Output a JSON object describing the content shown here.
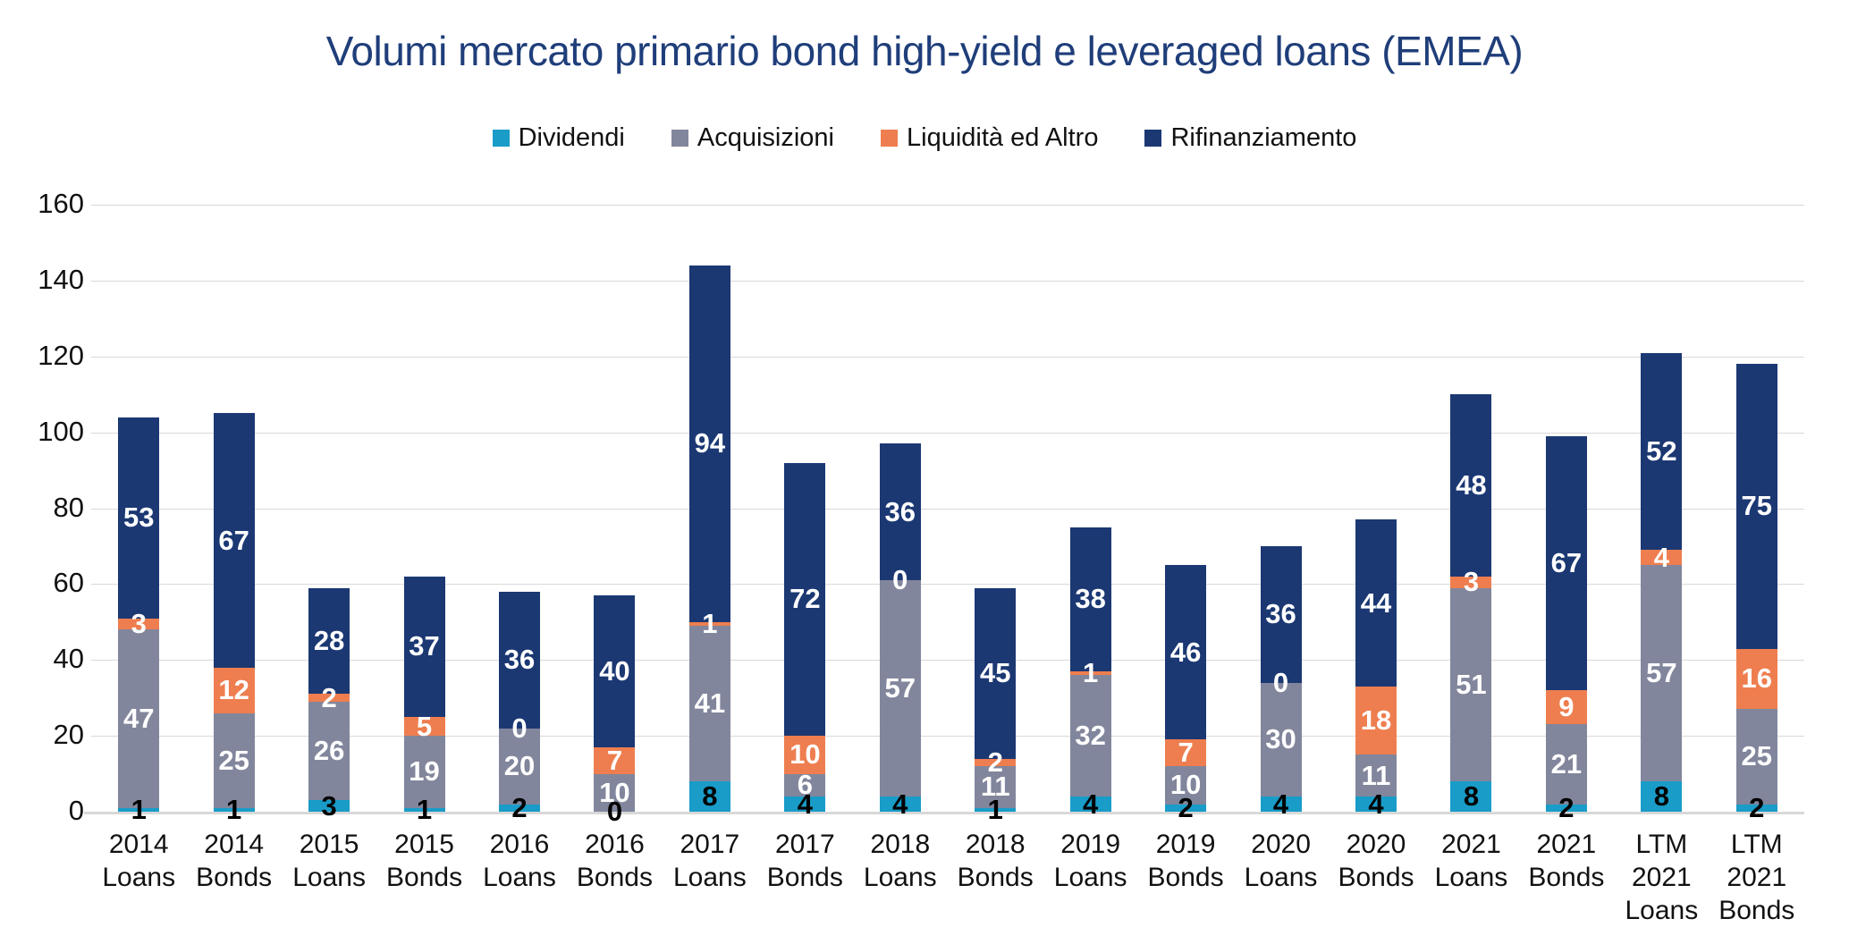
{
  "title": "Volumi mercato primario bond high-yield e leveraged loans (EMEA)",
  "colors": {
    "title_text": "#1F3E7A",
    "dividendi": "#199CC8",
    "acquisizioni": "#82869C",
    "liquidita": "#EE7E4F",
    "rifinanziamento": "#1B3873",
    "gridline": "#D9D9D9",
    "axis_text": "#111111",
    "label_on_segment": "#FFFFFF",
    "label_dividendi": "#000000"
  },
  "legend": [
    {
      "name": "dividendi",
      "label": "Dividendi",
      "color": "#199CC8"
    },
    {
      "name": "acquisizioni",
      "label": "Acquisizioni",
      "color": "#82869C"
    },
    {
      "name": "liquidita",
      "label": "Liquidità ed Altro",
      "color": "#EE7E4F"
    },
    {
      "name": "rifinanziamento",
      "label": "Rifinanziamento",
      "color": "#1B3873"
    }
  ],
  "chart_data": {
    "type": "bar",
    "stacked": true,
    "title": "Volumi mercato primario bond high-yield e leveraged loans (EMEA)",
    "xlabel": "",
    "ylabel": "",
    "ylim": [
      0,
      160
    ],
    "ytick_step": 20,
    "yticks": [
      0,
      20,
      40,
      60,
      80,
      100,
      120,
      140,
      160
    ],
    "grid": true,
    "legend_position": "top",
    "categories": [
      "2014 Loans",
      "2014 Bonds",
      "2015 Loans",
      "2015 Bonds",
      "2016 Loans",
      "2016 Bonds",
      "2017 Loans",
      "2017 Bonds",
      "2018 Loans",
      "2018 Bonds",
      "2019 Loans",
      "2019 Bonds",
      "2020 Loans",
      "2020 Bonds",
      "2021 Loans",
      "2021 Bonds",
      "LTM 2021 Loans",
      "LTM 2021 Bonds"
    ],
    "category_label_lines": [
      [
        "2014",
        "Loans"
      ],
      [
        "2014",
        "Bonds"
      ],
      [
        "2015",
        "Loans"
      ],
      [
        "2015",
        "Bonds"
      ],
      [
        "2016",
        "Loans"
      ],
      [
        "2016",
        "Bonds"
      ],
      [
        "2017",
        "Loans"
      ],
      [
        "2017",
        "Bonds"
      ],
      [
        "2018",
        "Loans"
      ],
      [
        "2018",
        "Bonds"
      ],
      [
        "2019",
        "Loans"
      ],
      [
        "2019",
        "Bonds"
      ],
      [
        "2020",
        "Loans"
      ],
      [
        "2020",
        "Bonds"
      ],
      [
        "2021",
        "Loans"
      ],
      [
        "2021",
        "Bonds"
      ],
      [
        "LTM",
        "2021",
        "Loans"
      ],
      [
        "LTM",
        "2021",
        "Bonds"
      ]
    ],
    "series": [
      {
        "name": "Dividendi",
        "color": "#199CC8",
        "label_color": "#000000",
        "values": [
          1,
          1,
          3,
          1,
          2,
          0,
          8,
          4,
          4,
          1,
          4,
          2,
          4,
          4,
          8,
          2,
          8,
          2
        ]
      },
      {
        "name": "Acquisizioni",
        "color": "#82869C",
        "label_color": "#FFFFFF",
        "values": [
          47,
          25,
          26,
          19,
          20,
          10,
          41,
          6,
          57,
          11,
          32,
          10,
          30,
          11,
          51,
          21,
          57,
          25
        ]
      },
      {
        "name": "Liquidità ed Altro",
        "color": "#EE7E4F",
        "label_color": "#FFFFFF",
        "values": [
          3,
          12,
          2,
          5,
          0,
          7,
          1,
          10,
          0,
          2,
          1,
          7,
          0,
          18,
          3,
          9,
          4,
          16
        ]
      },
      {
        "name": "Rifinanziamento",
        "color": "#1B3873",
        "label_color": "#FFFFFF",
        "values": [
          53,
          67,
          28,
          37,
          36,
          40,
          94,
          72,
          36,
          45,
          38,
          46,
          36,
          44,
          48,
          67,
          52,
          75
        ]
      }
    ]
  },
  "geometry_note": "y axis 0-160, gridlines every 20"
}
